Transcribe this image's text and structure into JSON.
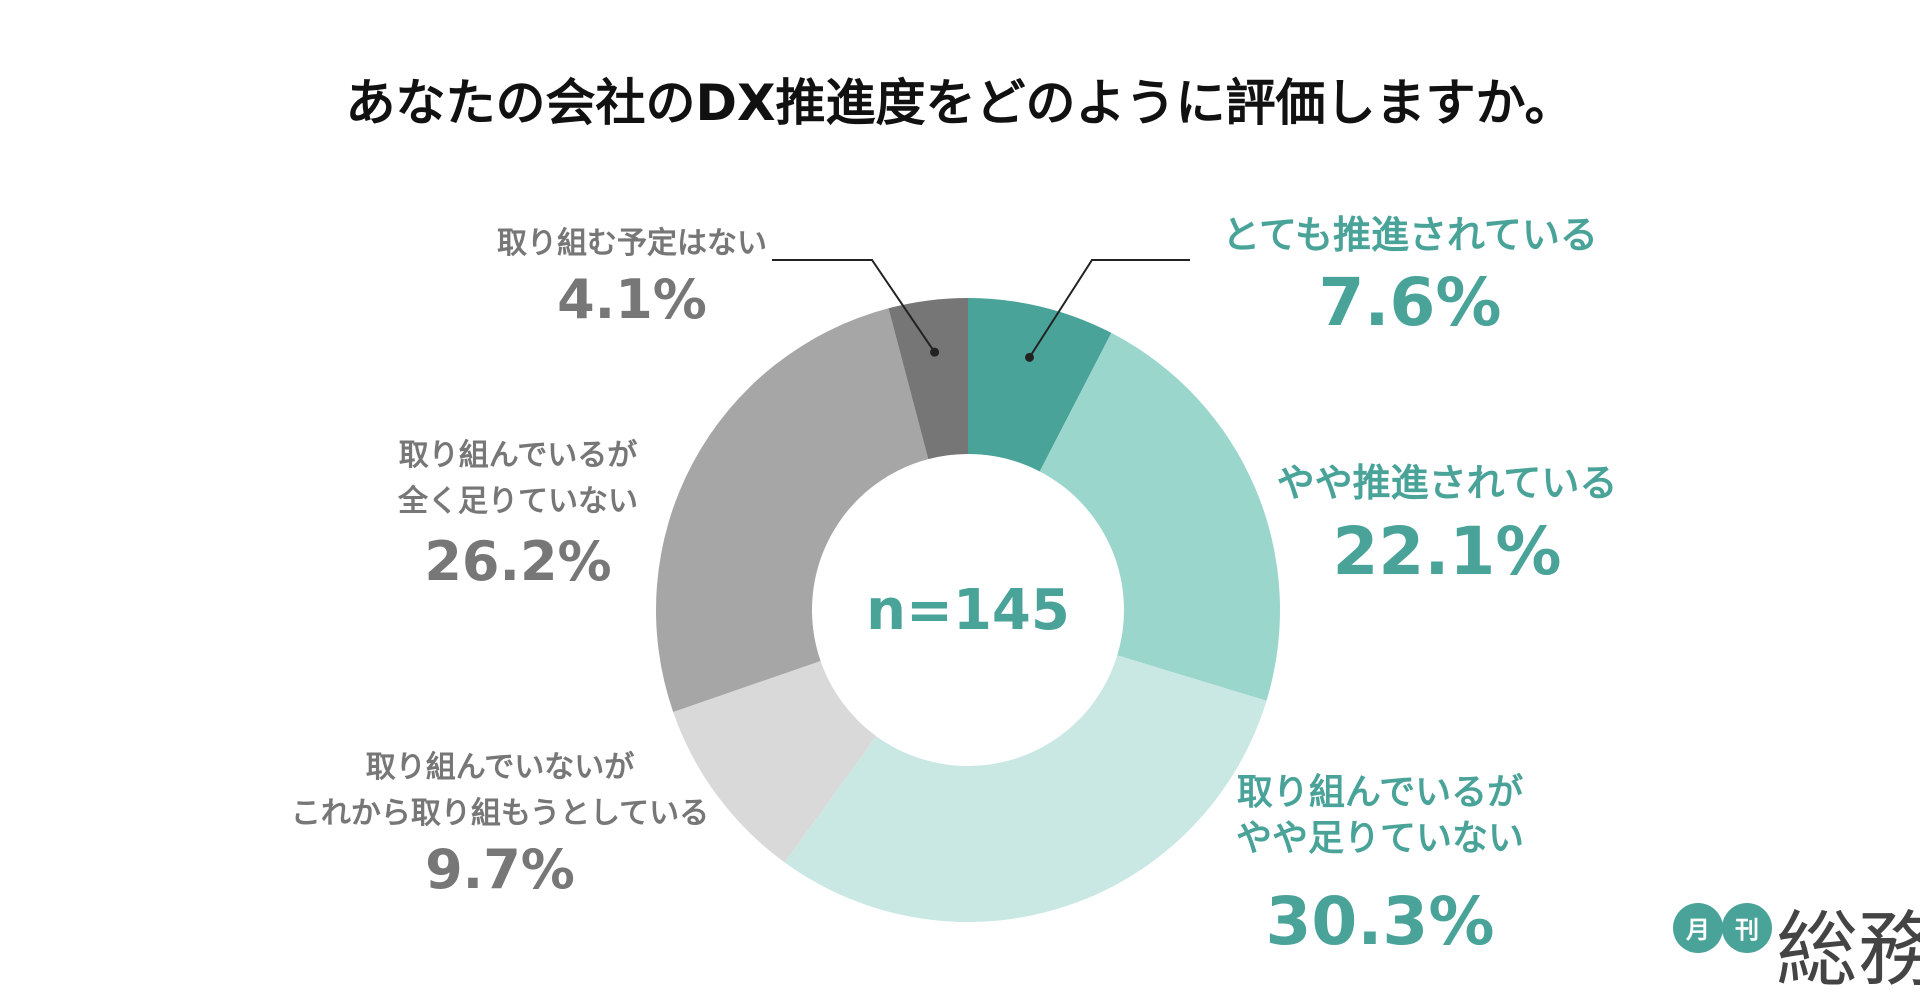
{
  "chart_data": {
    "type": "pie",
    "variant": "donut",
    "title": "あなたの会社のDX推進度をどのように評価しますか。",
    "center_label": "n=145",
    "slices": [
      {
        "label_lines": [
          "とても推進されている"
        ],
        "value": 7.6,
        "value_text": "7.6%",
        "color": "#4aa399",
        "text_color": "#4aa399"
      },
      {
        "label_lines": [
          "やや推進されている"
        ],
        "value": 22.1,
        "value_text": "22.1%",
        "color": "#9bd6cc",
        "text_color": "#4aa399"
      },
      {
        "label_lines": [
          "取り組んでいるが",
          "やや足りていない"
        ],
        "value": 30.3,
        "value_text": "30.3%",
        "color": "#c9e8e4",
        "text_color": "#4aa399"
      },
      {
        "label_lines": [
          "取り組んでいないが",
          "これから取り組もうとしている"
        ],
        "value": 9.7,
        "value_text": "9.7%",
        "color": "#d9d9d9",
        "text_color": "#777777"
      },
      {
        "label_lines": [
          "取り組んでいるが",
          "全く足りていない"
        ],
        "value": 26.2,
        "value_text": "26.2%",
        "color": "#a6a6a6",
        "text_color": "#777777"
      },
      {
        "label_lines": [
          "取り組む予定はない"
        ],
        "value": 4.1,
        "value_text": "4.1%",
        "color": "#767676",
        "text_color": "#777777"
      }
    ]
  },
  "logo": {
    "badge_1": "月",
    "badge_2": "刊",
    "name": "総務",
    "badge_color": "#4aa399"
  }
}
